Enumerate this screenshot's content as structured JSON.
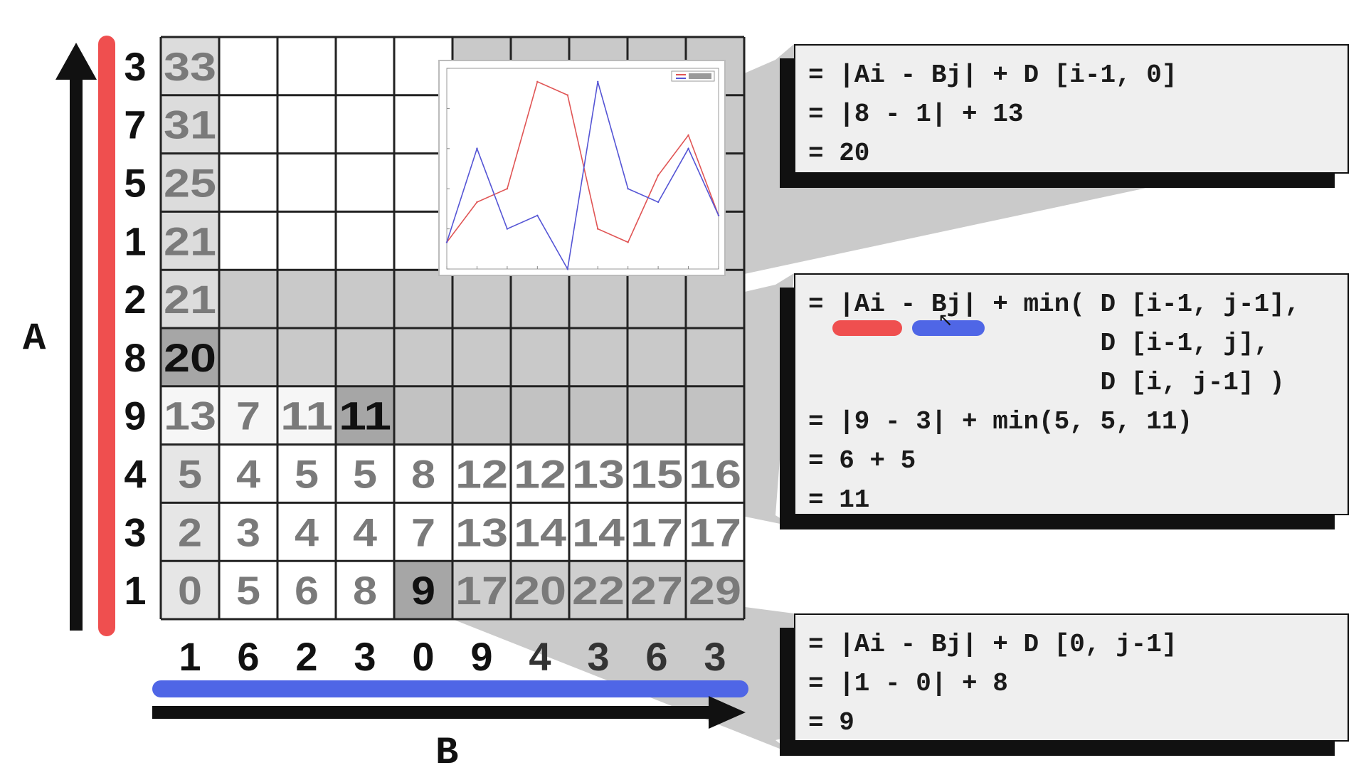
{
  "axis_labels": {
    "a": "A",
    "b": "B"
  },
  "sequence_a": [
    "3",
    "7",
    "5",
    "1",
    "2",
    "8",
    "9",
    "4",
    "3",
    "1"
  ],
  "sequence_b": [
    "1",
    "6",
    "2",
    "3",
    "0",
    "9",
    "4",
    "3",
    "6",
    "3"
  ],
  "grid": [
    [
      "33",
      "",
      "",
      "",
      "",
      "",
      "",
      "",
      "",
      ""
    ],
    [
      "31",
      "",
      "",
      "",
      "",
      "",
      "",
      "",
      "",
      ""
    ],
    [
      "25",
      "",
      "",
      "",
      "",
      "",
      "",
      "",
      "",
      ""
    ],
    [
      "21",
      "",
      "",
      "",
      "",
      "",
      "",
      "",
      "",
      ""
    ],
    [
      "21",
      "",
      "",
      "",
      "",
      "",
      "",
      "",
      "",
      ""
    ],
    [
      "20",
      "",
      "",
      "",
      "",
      "",
      "",
      "",
      "",
      ""
    ],
    [
      "13",
      "7",
      "11",
      "11",
      "",
      "",
      "",
      "",
      "",
      ""
    ],
    [
      "5",
      "4",
      "5",
      "5",
      "8",
      "12",
      "12",
      "13",
      "15",
      "16"
    ],
    [
      "2",
      "3",
      "4",
      "4",
      "7",
      "13",
      "14",
      "14",
      "17",
      "17"
    ],
    [
      "0",
      "5",
      "6",
      "8",
      "9",
      "17",
      "20",
      "22",
      "27",
      "29"
    ]
  ],
  "formulas": {
    "first_column": [
      "= |Ai - Bj| + D [i-1, 0]",
      "= |8 - 1| + 13",
      "= 20"
    ],
    "general": [
      "= |Ai - Bj| + min( D [i-1, j-1],",
      "                   D [i-1, j],",
      "                   D [i, j-1] )",
      "= |9 - 3| + min(5, 5, 11)",
      "= 6 + 5",
      "= 11"
    ],
    "first_row": [
      "= |Ai - Bj| + D [0, j-1]",
      "= |1 - 0| + 8",
      "= 9"
    ]
  },
  "colors": {
    "a_bar": "#ef4f4f",
    "b_bar": "#4f66e6",
    "arrow": "#111111",
    "grid_line": "#222222",
    "cell_text": "#7a7a7a",
    "highlight_text": "#111111",
    "projection_fill": "#b8b8b8"
  },
  "chart_data": {
    "type": "line",
    "x": [
      0,
      1,
      2,
      3,
      4,
      5,
      6,
      7,
      8,
      9
    ],
    "series": [
      {
        "values": [
          0,
          3,
          4,
          12,
          11,
          1,
          0,
          5,
          8,
          2
        ],
        "color": "#e05555"
      },
      {
        "values": [
          0,
          7,
          1,
          2,
          -2,
          12,
          4,
          3,
          7,
          2
        ],
        "color": "#5555d5"
      }
    ],
    "ylim": [
      -2,
      13
    ],
    "legend": "top-right",
    "grid": false
  }
}
